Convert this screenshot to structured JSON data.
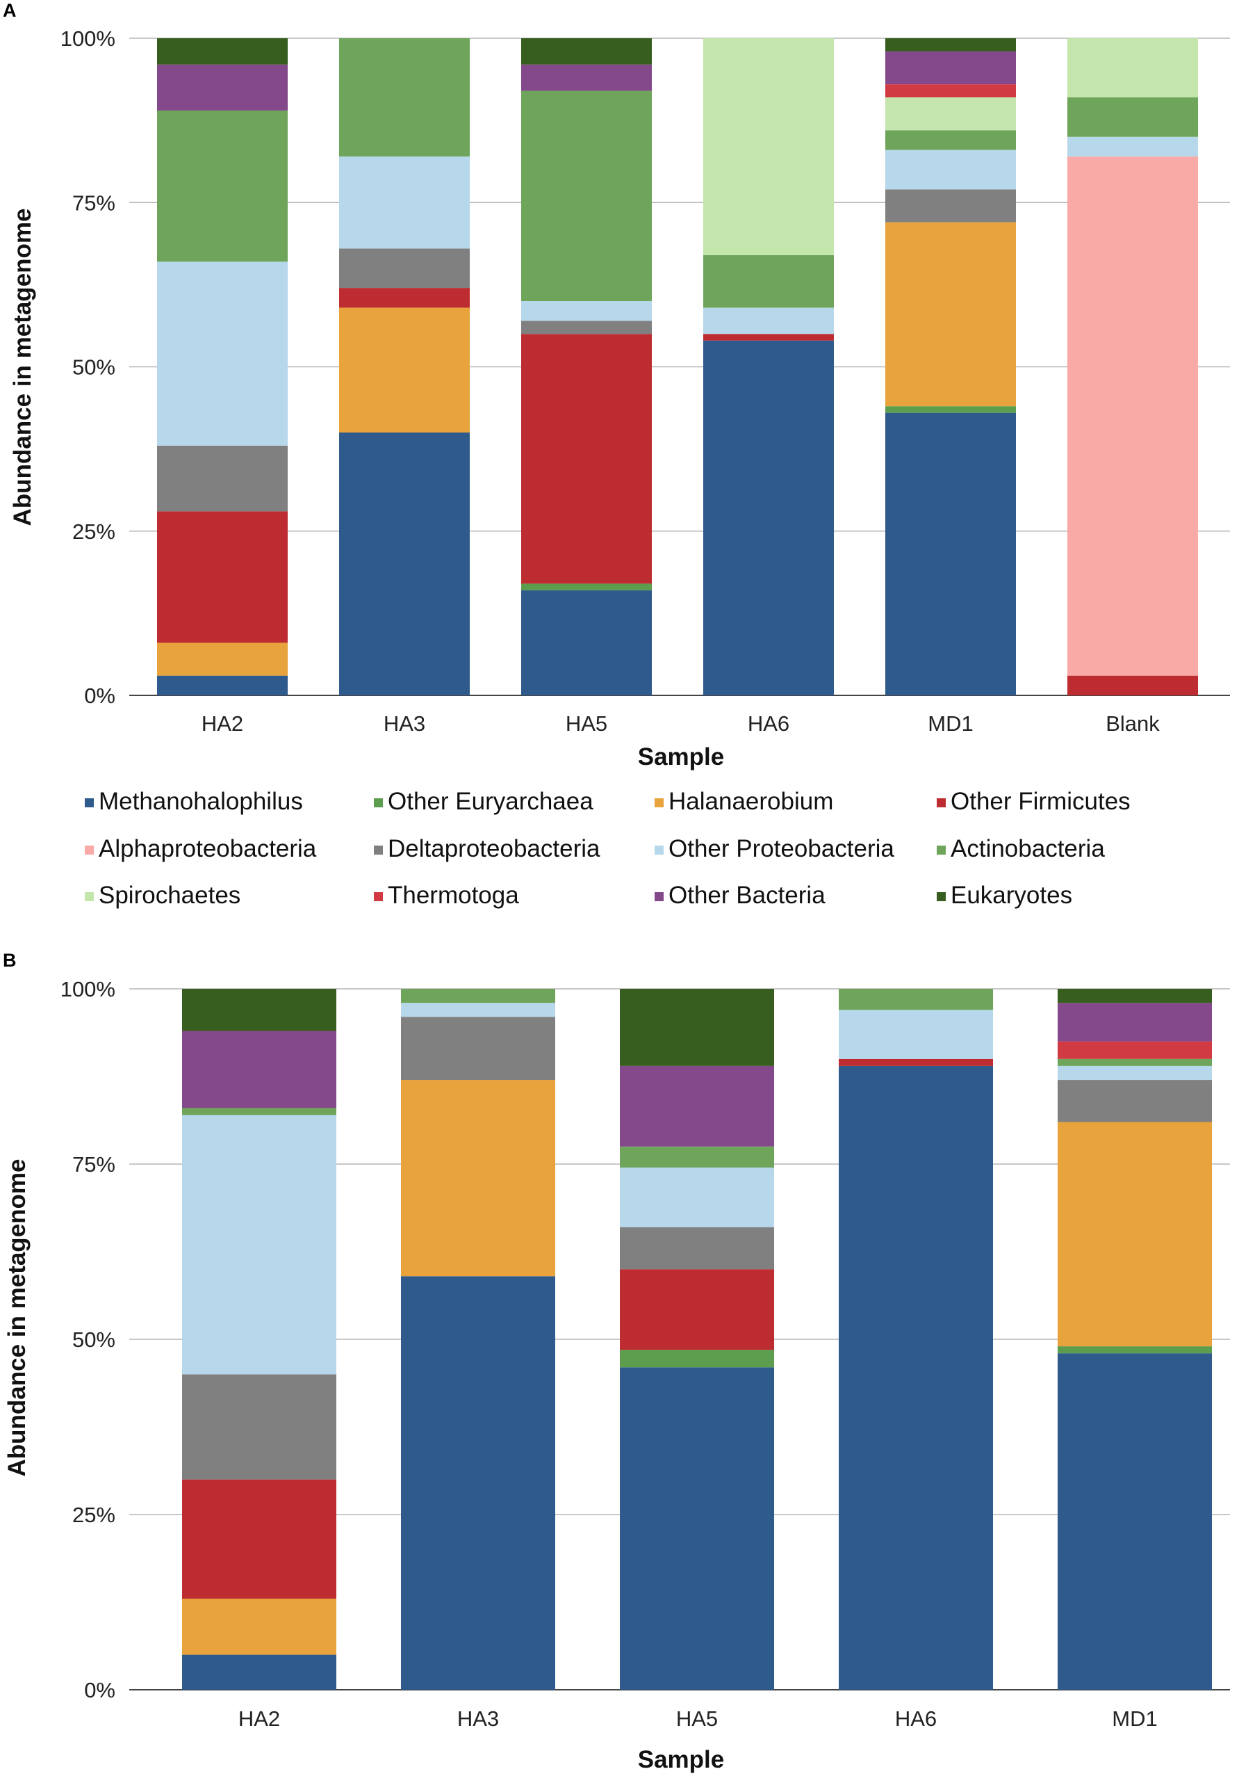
{
  "chart_data": [
    {
      "panel": "A",
      "type": "bar",
      "stacked": true,
      "xlabel": "Sample",
      "ylabel": "Abundance in metagenome",
      "ylim": [
        0,
        100
      ],
      "yticks": [
        "0%",
        "25%",
        "50%",
        "75%",
        "100%"
      ],
      "grid": true,
      "categories": [
        "HA2",
        "HA3",
        "HA5",
        "HA6",
        "MD1",
        "Blank"
      ],
      "series": [
        {
          "name": "Methanohalophilus",
          "color": "#2e5a8c",
          "values": [
            3,
            40,
            16,
            54,
            43,
            0
          ]
        },
        {
          "name": "Other Euryarchaea",
          "color": "#5d9d4e",
          "values": [
            0,
            0,
            1,
            0,
            1,
            0
          ]
        },
        {
          "name": "Halanaerobium",
          "color": "#e8a33c",
          "values": [
            5,
            19,
            0,
            0,
            28,
            0
          ]
        },
        {
          "name": "Other Firmicutes",
          "color": "#bd2c30",
          "values": [
            20,
            3,
            38,
            1,
            0,
            3
          ]
        },
        {
          "name": "Alphaproteobacteria",
          "color": "#f9aaa6",
          "values": [
            0,
            0,
            0,
            0,
            0,
            79
          ]
        },
        {
          "name": "Deltaproteobacteria",
          "color": "#808080",
          "values": [
            10,
            6,
            2,
            0,
            5,
            0
          ]
        },
        {
          "name": "Other Proteobacteria",
          "color": "#b7d7ea",
          "values": [
            28,
            14,
            3,
            4,
            6,
            3
          ]
        },
        {
          "name": "Actinobacteria",
          "color": "#6ea55b",
          "values": [
            23,
            18,
            32,
            8,
            3,
            6
          ]
        },
        {
          "name": "Spirochaetes",
          "color": "#c4e6ad",
          "values": [
            0,
            0,
            0,
            33,
            5,
            9
          ]
        },
        {
          "name": "Thermotoga",
          "color": "#d13a42",
          "values": [
            0,
            0,
            0,
            0,
            2,
            0
          ]
        },
        {
          "name": "Other Bacteria",
          "color": "#83498a",
          "values": [
            7,
            0,
            4,
            0,
            5,
            0
          ]
        },
        {
          "name": "Eukaryotes",
          "color": "#375e1e",
          "values": [
            4,
            0,
            4,
            0,
            2,
            0
          ]
        }
      ]
    },
    {
      "panel": "B",
      "type": "bar",
      "stacked": true,
      "xlabel": "Sample",
      "ylabel": "Abundance in metagenome",
      "ylim": [
        0,
        100
      ],
      "yticks": [
        "0%",
        "25%",
        "50%",
        "75%",
        "100%"
      ],
      "grid": true,
      "categories": [
        "HA2",
        "HA3",
        "HA5",
        "HA6",
        "MD1"
      ],
      "series": [
        {
          "name": "Methanohalophilus",
          "color": "#2e5a8c",
          "values": [
            5,
            59,
            46,
            89,
            48
          ]
        },
        {
          "name": "Other Euryarchaea",
          "color": "#5d9d4e",
          "values": [
            0,
            0,
            2.5,
            0,
            1
          ]
        },
        {
          "name": "Halanaerobium",
          "color": "#e8a33c",
          "values": [
            8,
            28,
            0,
            0,
            32
          ]
        },
        {
          "name": "Other Firmicutes",
          "color": "#bd2c30",
          "values": [
            17,
            0,
            11.5,
            1,
            0
          ]
        },
        {
          "name": "Alphaproteobacteria",
          "color": "#f9aaa6",
          "values": [
            0,
            0,
            0,
            0,
            0
          ]
        },
        {
          "name": "Deltaproteobacteria",
          "color": "#808080",
          "values": [
            15,
            9,
            6,
            0,
            6
          ]
        },
        {
          "name": "Other Proteobacteria",
          "color": "#b7d7ea",
          "values": [
            37,
            2,
            8.5,
            7,
            2
          ]
        },
        {
          "name": "Actinobacteria",
          "color": "#6ea55b",
          "values": [
            1,
            2,
            3,
            3,
            1
          ]
        },
        {
          "name": "Spirochaetes",
          "color": "#c4e6ad",
          "values": [
            0,
            0,
            0,
            0,
            0
          ]
        },
        {
          "name": "Thermotoga",
          "color": "#d13a42",
          "values": [
            0,
            0,
            0,
            0,
            2.5
          ]
        },
        {
          "name": "Other Bacteria",
          "color": "#83498a",
          "values": [
            11,
            0,
            11.5,
            0,
            5.5
          ]
        },
        {
          "name": "Eukaryotes",
          "color": "#375e1e",
          "values": [
            6,
            0,
            11,
            0,
            2
          ]
        }
      ]
    }
  ],
  "legend": [
    {
      "name": "Methanohalophilus",
      "color": "#2e5a8c"
    },
    {
      "name": "Other Euryarchaea",
      "color": "#5d9d4e"
    },
    {
      "name": "Halanaerobium",
      "color": "#e8a33c"
    },
    {
      "name": "Other Firmicutes",
      "color": "#bd2c30"
    },
    {
      "name": "Alphaproteobacteria",
      "color": "#f9aaa6"
    },
    {
      "name": "Deltaproteobacteria",
      "color": "#808080"
    },
    {
      "name": "Other Proteobacteria",
      "color": "#b7d7ea"
    },
    {
      "name": "Actinobacteria",
      "color": "#6ea55b"
    },
    {
      "name": "Spirochaetes",
      "color": "#c4e6ad"
    },
    {
      "name": "Thermotoga",
      "color": "#d13a42"
    },
    {
      "name": "Other Bacteria",
      "color": "#83498a"
    },
    {
      "name": "Eukaryotes",
      "color": "#375e1e"
    }
  ]
}
